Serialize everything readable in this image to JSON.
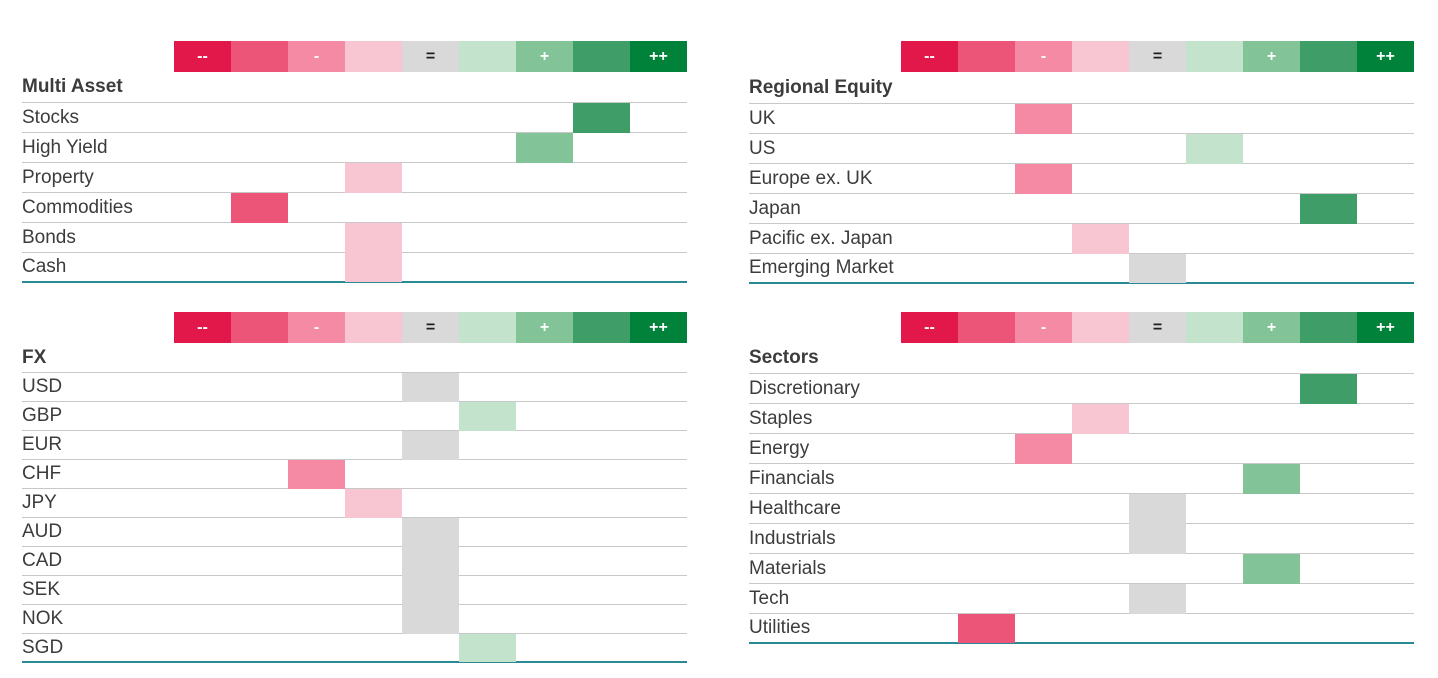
{
  "scale": {
    "labels": [
      "--",
      "",
      "-",
      "",
      "=",
      "",
      "+",
      "",
      "++"
    ],
    "colors": [
      "#e2184a",
      "#ec5478",
      "#f48aa3",
      "#f8c6d2",
      "#d9d9d9",
      "#c3e3cd",
      "#82c498",
      "#3f9e67",
      "#00823b"
    ]
  },
  "chart_data": [
    {
      "type": "table",
      "title": "Multi Asset",
      "rows": [
        {
          "label": "Stocks",
          "score": 7
        },
        {
          "label": "High Yield",
          "score": 6
        },
        {
          "label": "Property",
          "score": 3
        },
        {
          "label": "Commodities",
          "score": 1
        },
        {
          "label": "Bonds",
          "score": 3
        },
        {
          "label": "Cash",
          "score": 3
        }
      ]
    },
    {
      "type": "table",
      "title": "Regional Equity",
      "rows": [
        {
          "label": "UK",
          "score": 2
        },
        {
          "label": "US",
          "score": 5
        },
        {
          "label": "Europe ex. UK",
          "score": 2
        },
        {
          "label": "Japan",
          "score": 7
        },
        {
          "label": "Pacific ex. Japan",
          "score": 3
        },
        {
          "label": "Emerging Market",
          "score": 4
        }
      ]
    },
    {
      "type": "table",
      "title": "FX",
      "rows": [
        {
          "label": "USD",
          "score": 4
        },
        {
          "label": "GBP",
          "score": 5
        },
        {
          "label": "EUR",
          "score": 4
        },
        {
          "label": "CHF",
          "score": 2
        },
        {
          "label": "JPY",
          "score": 3
        },
        {
          "label": "AUD",
          "score": 4
        },
        {
          "label": "CAD",
          "score": 4
        },
        {
          "label": "SEK",
          "score": 4
        },
        {
          "label": "NOK",
          "score": 4
        },
        {
          "label": "SGD",
          "score": 5
        }
      ]
    },
    {
      "type": "table",
      "title": "Sectors",
      "rows": [
        {
          "label": "Discretionary",
          "score": 7
        },
        {
          "label": "Staples",
          "score": 3
        },
        {
          "label": "Energy",
          "score": 2
        },
        {
          "label": "Financials",
          "score": 6
        },
        {
          "label": "Healthcare",
          "score": 4
        },
        {
          "label": "Industrials",
          "score": 4
        },
        {
          "label": "Materials",
          "score": 6
        },
        {
          "label": "Tech",
          "score": 4
        },
        {
          "label": "Utilities",
          "score": 1
        }
      ]
    }
  ]
}
